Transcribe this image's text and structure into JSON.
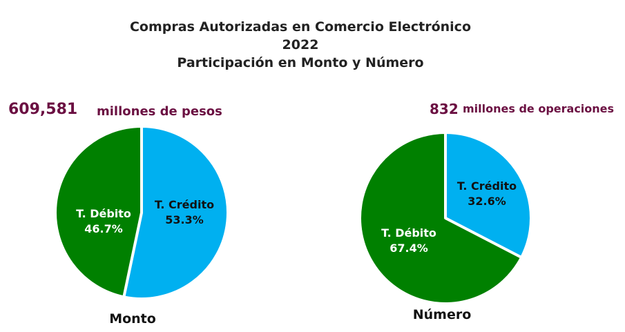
{
  "title_lines": [
    "Compras Autorizadas en Comercio Electrónico",
    "2022",
    "Participación en Monto y Número"
  ],
  "monto_total": {
    "value": "609,581",
    "unit": "millones de pesos"
  },
  "numero_total": {
    "value": "832",
    "unit": "millones de operaciones"
  },
  "colors": {
    "credito": "#00b0f0",
    "debito": "#008000",
    "accent": "#6b1042"
  },
  "chart_data": [
    {
      "type": "pie",
      "title": "Monto",
      "slices": [
        {
          "label": "T. Crédito",
          "value": 53.3,
          "display": "53.3%",
          "color": "#00b0f0",
          "label_color": "#111111"
        },
        {
          "label": "T. Débito",
          "value": 46.7,
          "display": "46.7%",
          "color": "#008000",
          "label_color": "#ffffff"
        }
      ]
    },
    {
      "type": "pie",
      "title": "Número",
      "slices": [
        {
          "label": "T. Crédito",
          "value": 32.6,
          "display": "32.6%",
          "color": "#00b0f0",
          "label_color": "#111111"
        },
        {
          "label": "T. Débito",
          "value": 67.4,
          "display": "67.4%",
          "color": "#008000",
          "label_color": "#ffffff"
        }
      ]
    }
  ]
}
